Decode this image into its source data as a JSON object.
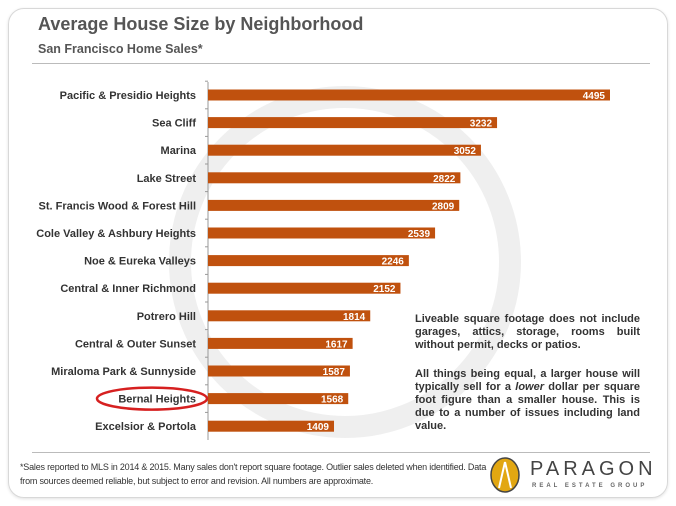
{
  "chart_data": {
    "type": "bar",
    "orientation": "horizontal",
    "title": "Average House Size by Neighborhood",
    "subtitle": "San Francisco Home Sales*",
    "categories": [
      "Pacific & Presidio Heights",
      "Sea Cliff",
      "Marina",
      "Lake Street",
      "St. Francis Wood & Forest Hill",
      "Cole Valley & Ashbury Heights",
      "Noe & Eureka Valleys",
      "Central & Inner Richmond",
      "Potrero Hill",
      "Central & Outer Sunset",
      "Miraloma Park & Sunnyside",
      "Bernal Heights",
      "Excelsior & Portola"
    ],
    "values": [
      4495,
      3232,
      3052,
      2822,
      2809,
      2539,
      2246,
      2152,
      1814,
      1617,
      1587,
      1568,
      1409
    ],
    "xlim": [
      0,
      4500
    ],
    "grid": false,
    "bar_color": "#c0510e",
    "highlight": "Bernal Heights",
    "highlight_color": "#d62020"
  },
  "notes": [
    "Liveable square footage does not include garages, attics, storage, rooms built without permit, decks or patios.",
    "All things being equal, a larger house will typically sell for a lower dollar per square foot figure than a smaller house. This is due to a number of issues including land value."
  ],
  "footnote": "*Sales reported to MLS in 2014 & 2015. Many sales don't report square footage. Outlier sales deleted when identified.  Data from sources deemed reliable, but subject to error and revision. All numbers  are approximate.",
  "logo": {
    "name": "PARAGON",
    "tagline": "REAL ESTATE GROUP"
  }
}
